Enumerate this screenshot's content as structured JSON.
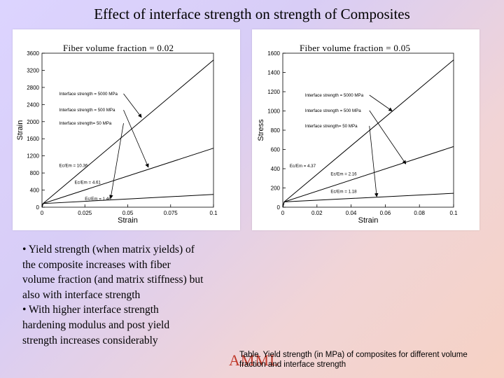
{
  "page": {
    "title": "Effect of interface strength on strength of Composites",
    "bullets": [
      "• Yield strength (when matrix yields) of the composite increases with fiber volume fraction (and matrix stiffness) but also with interface strength",
      "• With higher interface strength hardening modulus and post yield strength increases considerably"
    ],
    "caption": "Table. Yield strength (in MPa) of composites for different volume fraction and interface strength",
    "logo_text": "AMML",
    "logo_color": "#c0392b"
  },
  "chart_data": [
    {
      "type": "line",
      "title": "Fiber volume fraction = 0.02",
      "xlabel": "Strain",
      "ylabel": "Strain",
      "xlim": [
        0,
        0.1
      ],
      "ylim": [
        0,
        3600
      ],
      "xticks": [
        0,
        0.025,
        0.05,
        0.075,
        0.1
      ],
      "xtick_labels": [
        "0",
        "0.025",
        "0.05",
        "0.075",
        "0.1"
      ],
      "yticks": [
        0,
        400,
        800,
        1200,
        1600,
        2000,
        2400,
        2800,
        3200,
        3600
      ],
      "ytick_labels": [
        "0",
        "400",
        "800",
        "1200",
        "1600",
        "2000",
        "2400",
        "2800",
        "3200",
        "3600"
      ],
      "series": [
        {
          "name": "Interface strength = 5000 MPa",
          "x": [
            0,
            0.0006,
            0.1
          ],
          "y": [
            0,
            85,
            3440
          ]
        },
        {
          "name": "Interface strength = 500 MPa",
          "x": [
            0,
            0.0006,
            0.1
          ],
          "y": [
            0,
            85,
            1380
          ]
        },
        {
          "name": "Interface strength= 50 MPa",
          "x": [
            0,
            0.0006,
            0.1
          ],
          "y": [
            0,
            85,
            300
          ]
        }
      ],
      "annotations": [
        {
          "text": "Interface strength = 5000 MPa",
          "x": 0.01,
          "y": 2620,
          "target": [
            0.058,
            2100
          ]
        },
        {
          "text": "Interface strength = 500 MPa",
          "x": 0.01,
          "y": 2240,
          "target": [
            0.062,
            935
          ]
        },
        {
          "text": "Interface strength= 50 MPa",
          "x": 0.01,
          "y": 1930,
          "target": [
            0.04,
            205
          ]
        },
        {
          "text": "Ec/Em = 10.36",
          "x": 0.01,
          "y": 940
        },
        {
          "text": "Ec/Em = 4.61",
          "x": 0.019,
          "y": 550
        },
        {
          "text": "Ec/Em = 1.46",
          "x": 0.025,
          "y": 160
        }
      ]
    },
    {
      "type": "line",
      "title": "Fiber volume fraction = 0.05",
      "xlabel": "Strain",
      "ylabel": "Stress",
      "xlim": [
        0,
        0.1
      ],
      "ylim": [
        0,
        1600
      ],
      "xticks": [
        0,
        0.02,
        0.04,
        0.06,
        0.08,
        0.1
      ],
      "xtick_labels": [
        "0",
        "0.02",
        "0.04",
        "0.06",
        "0.08",
        "0.1"
      ],
      "yticks": [
        0,
        200,
        400,
        600,
        800,
        1000,
        1200,
        1400,
        1600
      ],
      "ytick_labels": [
        "0",
        "200",
        "400",
        "600",
        "800",
        "1000",
        "1200",
        "1400",
        "1600"
      ],
      "series": [
        {
          "name": "Interface strength = 5000 MPa",
          "x": [
            0,
            0.0008,
            0.1
          ],
          "y": [
            0,
            55,
            1530
          ]
        },
        {
          "name": "Interface strength = 500 MPa",
          "x": [
            0,
            0.0008,
            0.1
          ],
          "y": [
            0,
            55,
            630
          ]
        },
        {
          "name": "Interface strength= 50 MPa",
          "x": [
            0,
            0.0008,
            0.1
          ],
          "y": [
            0,
            55,
            145
          ]
        }
      ],
      "annotations": [
        {
          "text": "Interface strength = 5000 MPa",
          "x": 0.013,
          "y": 1150,
          "target": [
            0.064,
            1000
          ]
        },
        {
          "text": "Interface strength = 500 MPa",
          "x": 0.013,
          "y": 990,
          "target": [
            0.072,
            450
          ]
        },
        {
          "text": "Interface strength= 50 MPa",
          "x": 0.013,
          "y": 830,
          "target": [
            0.055,
            110
          ]
        },
        {
          "text": "Ec/Em = 4.37",
          "x": 0.004,
          "y": 415
        },
        {
          "text": "Ec/Em = 2.16",
          "x": 0.028,
          "y": 330
        },
        {
          "text": "Ec/Em = 1.18",
          "x": 0.028,
          "y": 150
        }
      ]
    }
  ]
}
